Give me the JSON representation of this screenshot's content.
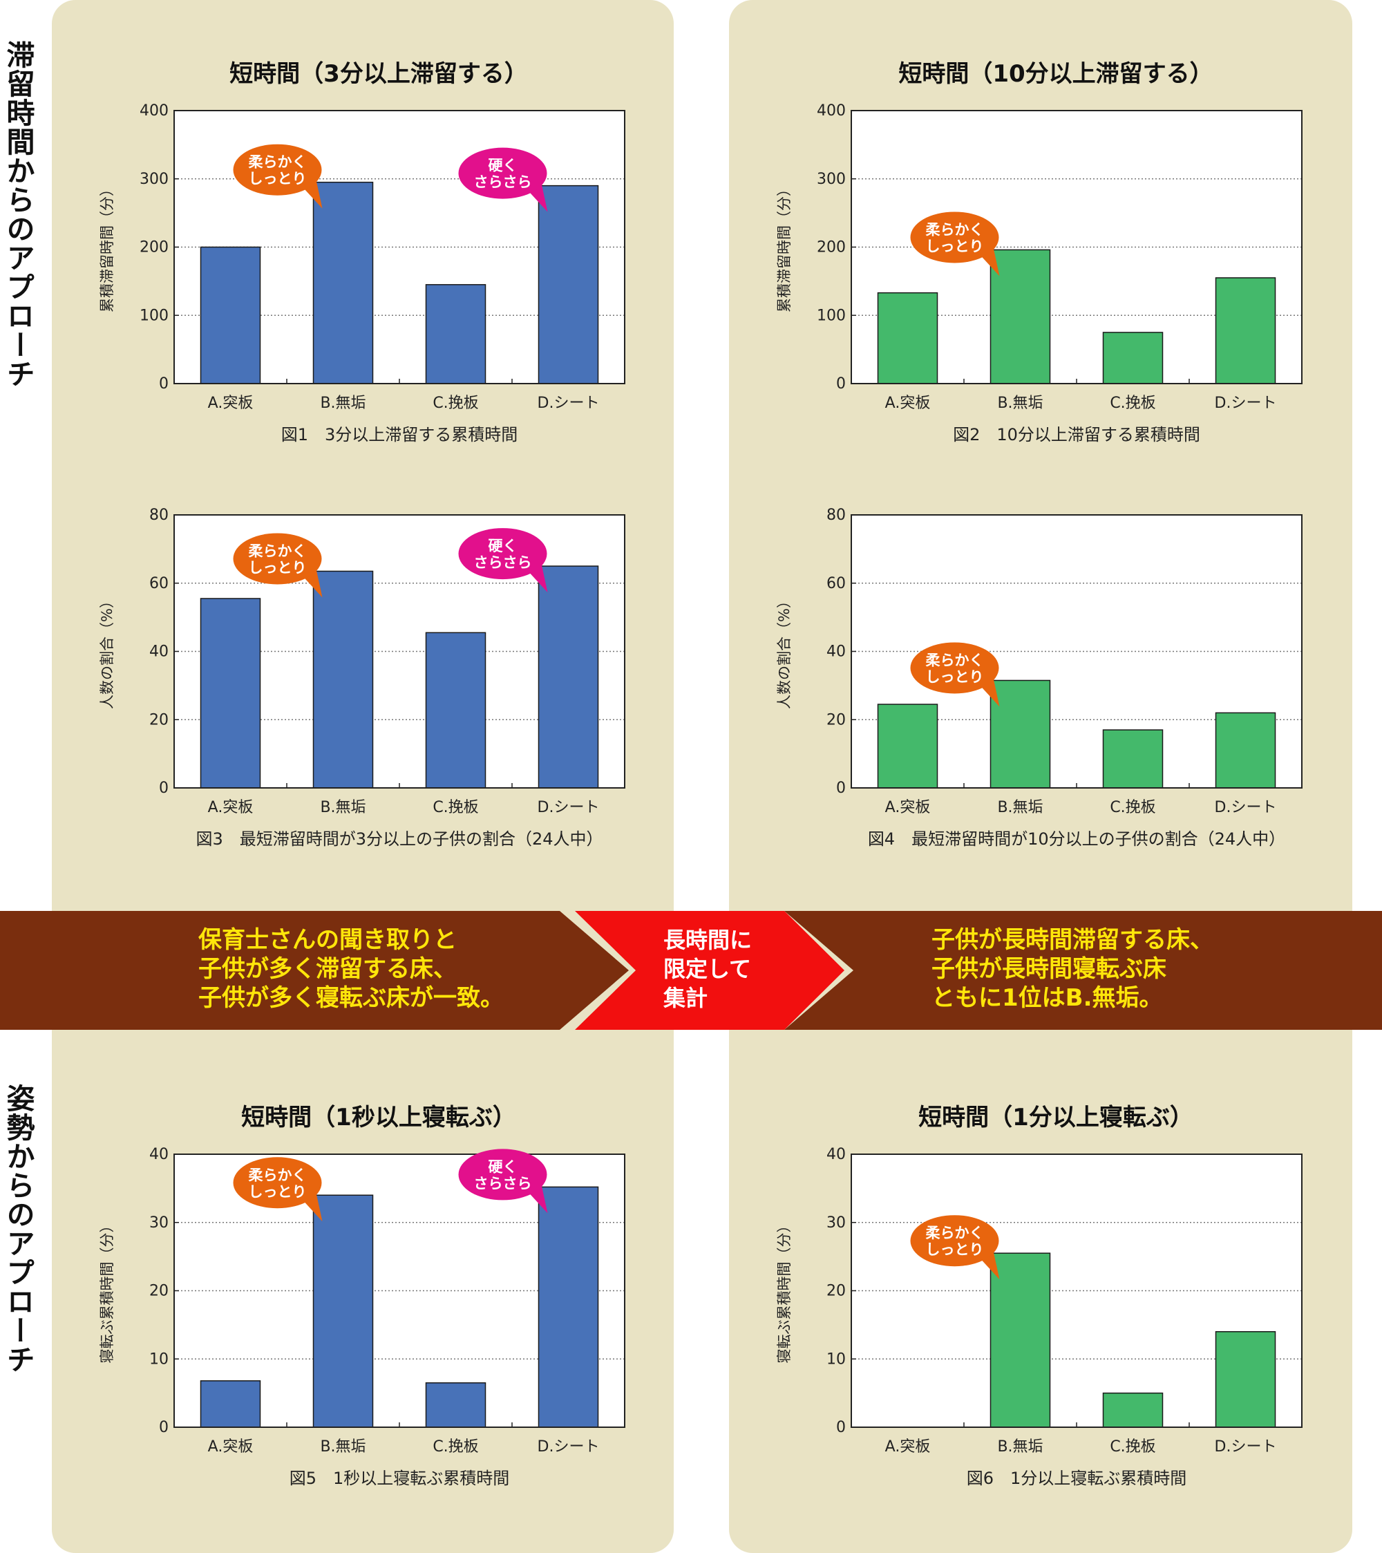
{
  "side_labels": {
    "top": "滞留時間からのアプローチ",
    "bottom": "姿勢からのアプローチ"
  },
  "colors": {
    "panel": "#e9e3c4",
    "blue_bar": "#4872b8",
    "green_bar": "#44b96b",
    "bubble_orange": "#e8650e",
    "bubble_pink": "#e2108c",
    "band_brown": "#7a2e0e",
    "band_red": "#f20f0f",
    "band_text": "#ffe60a"
  },
  "band": {
    "left_text": "保育士さんの聞き取りと\n子供が多く滞留する床、\n子供が多く寝転ぶ床が一致。",
    "middle_text": "長時間に\n限定して\n集計",
    "right_text": "子供が長時間滞留する床、\n子供が長時間寝転ぶ床\nともに1位はB.無垢。"
  },
  "chart_data": [
    {
      "id": "chart-fig1",
      "type": "bar",
      "title": "短時間（3分以上滞留する）",
      "caption": "図1　3分以上滞留する累積時間",
      "ylabel": "累積滞留時間（分）",
      "categories": [
        "A.突板",
        "B.無垢",
        "C.挽板",
        "D.シート"
      ],
      "values": [
        200,
        295,
        145,
        290
      ],
      "ylim": [
        0,
        400
      ],
      "yticks": [
        0,
        100,
        200,
        300,
        400
      ],
      "color": "blue",
      "grid": true,
      "bubbles": [
        {
          "text": [
            "柔らかく",
            "しっとり"
          ],
          "category": 1,
          "color": "orange"
        },
        {
          "text": [
            "硬く",
            "さらさら"
          ],
          "category": 3,
          "color": "pink"
        }
      ]
    },
    {
      "id": "chart-fig2",
      "type": "bar",
      "title": "短時間（10分以上滞留する）",
      "caption": "図2　10分以上滞留する累積時間",
      "ylabel": "累積滞留時間（分）",
      "categories": [
        "A.突板",
        "B.無垢",
        "C.挽板",
        "D.シート"
      ],
      "values": [
        133,
        196,
        75,
        155
      ],
      "ylim": [
        0,
        400
      ],
      "yticks": [
        0,
        100,
        200,
        300,
        400
      ],
      "color": "green",
      "grid": true,
      "bubbles": [
        {
          "text": [
            "柔らかく",
            "しっとり"
          ],
          "category": 1,
          "color": "orange"
        }
      ]
    },
    {
      "id": "chart-fig3",
      "type": "bar",
      "title": "",
      "caption": "図3　最短滞留時間が3分以上の子供の割合（24人中）",
      "ylabel": "人数の割合（%）",
      "categories": [
        "A.突板",
        "B.無垢",
        "C.挽板",
        "D.シート"
      ],
      "values": [
        55.5,
        63.5,
        45.5,
        65
      ],
      "ylim": [
        0,
        80
      ],
      "yticks": [
        0,
        20,
        40,
        60,
        80
      ],
      "color": "blue",
      "grid": true,
      "bubbles": [
        {
          "text": [
            "柔らかく",
            "しっとり"
          ],
          "category": 1,
          "color": "orange"
        },
        {
          "text": [
            "硬く",
            "さらさら"
          ],
          "category": 3,
          "color": "pink"
        }
      ]
    },
    {
      "id": "chart-fig4",
      "type": "bar",
      "title": "",
      "caption": "図4　最短滞留時間が10分以上の子供の割合（24人中）",
      "ylabel": "人数の割合（%）",
      "categories": [
        "A.突板",
        "B.無垢",
        "C.挽板",
        "D.シート"
      ],
      "values": [
        24.5,
        31.5,
        17,
        22
      ],
      "ylim": [
        0,
        80
      ],
      "yticks": [
        0,
        20,
        40,
        60,
        80
      ],
      "color": "green",
      "grid": true,
      "bubbles": [
        {
          "text": [
            "柔らかく",
            "しっとり"
          ],
          "category": 1,
          "color": "orange"
        }
      ]
    },
    {
      "id": "chart-fig5",
      "type": "bar",
      "title": "短時間（1秒以上寝転ぶ）",
      "caption": "図5　1秒以上寝転ぶ累積時間",
      "ylabel": "寝転ぶ累積時間（分）",
      "categories": [
        "A.突板",
        "B.無垢",
        "C.挽板",
        "D.シート"
      ],
      "values": [
        6.8,
        34,
        6.5,
        35.2
      ],
      "ylim": [
        0,
        40
      ],
      "yticks": [
        0,
        10,
        20,
        30,
        40
      ],
      "color": "blue",
      "grid": true,
      "bubbles": [
        {
          "text": [
            "柔らかく",
            "しっとり"
          ],
          "category": 1,
          "color": "orange"
        },
        {
          "text": [
            "硬く",
            "さらさら"
          ],
          "category": 3,
          "color": "pink"
        }
      ]
    },
    {
      "id": "chart-fig6",
      "type": "bar",
      "title": "短時間（1分以上寝転ぶ）",
      "caption": "図6　1分以上寝転ぶ累積時間",
      "ylabel": "寝転ぶ累積時間（分）",
      "categories": [
        "A.突板",
        "B.無垢",
        "C.挽板",
        "D.シート"
      ],
      "values": [
        0,
        25.5,
        5,
        14
      ],
      "ylim": [
        0,
        40
      ],
      "yticks": [
        0,
        10,
        20,
        30,
        40
      ],
      "color": "green",
      "grid": true,
      "bubbles": [
        {
          "text": [
            "柔らかく",
            "しっとり"
          ],
          "category": 1,
          "color": "orange"
        }
      ]
    }
  ]
}
